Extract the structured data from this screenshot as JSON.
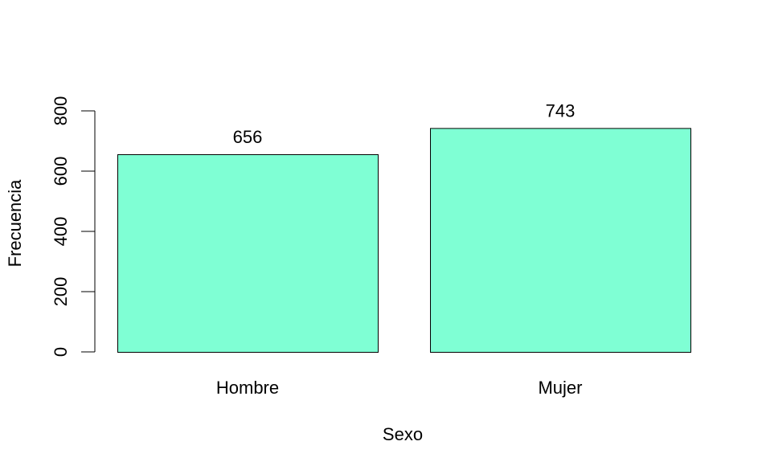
{
  "chart_data": {
    "type": "bar",
    "title": "",
    "xlabel": "Sexo",
    "ylabel": "Frecuencia",
    "categories": [
      "Hombre",
      "Mujer"
    ],
    "values": [
      656,
      743
    ],
    "data_labels": [
      "656",
      "743"
    ],
    "ylim": [
      0,
      800
    ],
    "yticks": [
      0,
      200,
      400,
      600,
      800
    ],
    "ytick_labels": [
      "0",
      "200",
      "400",
      "600",
      "800"
    ],
    "bar_color": "#7FFFD4",
    "bar_edge_color": "#000000",
    "grid": false,
    "legend": "none"
  }
}
